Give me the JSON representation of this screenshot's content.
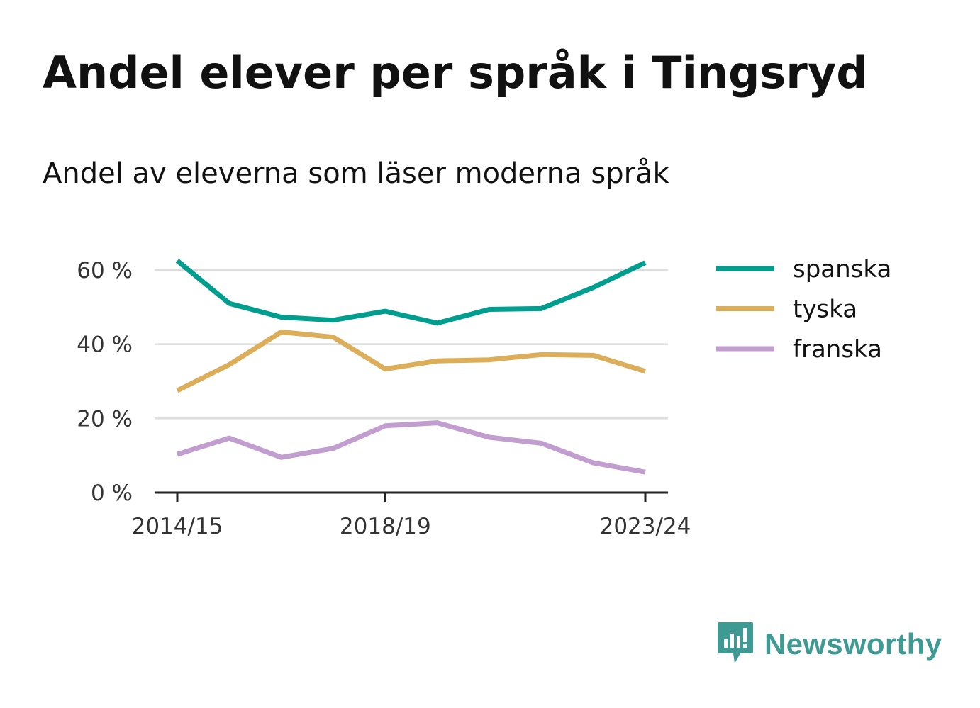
{
  "header": {
    "title": "Andel elever per språk i Tingsryd",
    "subtitle": "Andel av eleverna som läser moderna språk"
  },
  "brand": {
    "name": "Newsworthy",
    "icon": "newsworthy-logo-icon",
    "color": "#3f9a94"
  },
  "chart_data": {
    "type": "line",
    "title": "Andel elever per språk i Tingsryd",
    "subtitle": "Andel av eleverna som läser moderna språk",
    "xlabel": "",
    "ylabel": "",
    "x": [
      "2014/15",
      "2015/16",
      "2016/17",
      "2017/18",
      "2018/19",
      "2019/20",
      "2020/21",
      "2021/22",
      "2022/23",
      "2023/24"
    ],
    "x_tick_labels": [
      "2014/15",
      "2018/19",
      "2023/24"
    ],
    "y_ticks": [
      0,
      20,
      40,
      60
    ],
    "y_tick_labels": [
      "0 %",
      "20 %",
      "40 %",
      "60 %"
    ],
    "ylim": [
      0,
      70
    ],
    "grid": "horizontal",
    "legend_position": "right",
    "series": [
      {
        "name": "spanska",
        "color": "#009e8f",
        "values": [
          62.5,
          51.0,
          47.3,
          46.5,
          48.9,
          45.7,
          49.4,
          49.6,
          55.3,
          62.0
        ]
      },
      {
        "name": "tyska",
        "color": "#dcae5a",
        "values": [
          27.5,
          34.5,
          43.3,
          41.9,
          33.3,
          35.5,
          35.8,
          37.2,
          37.0,
          32.7
        ]
      },
      {
        "name": "franska",
        "color": "#c19ecf",
        "values": [
          10.3,
          14.7,
          9.5,
          11.9,
          18.0,
          18.8,
          14.9,
          13.3,
          8.0,
          5.5
        ]
      }
    ]
  }
}
